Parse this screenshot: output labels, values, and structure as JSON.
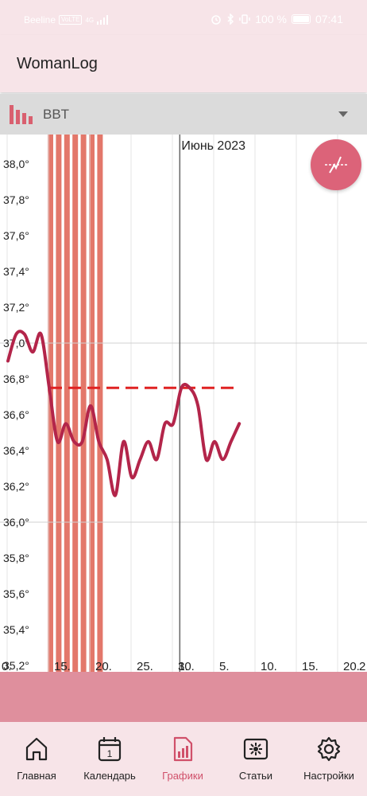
{
  "status_bar": {
    "carrier": "Beeline",
    "volte": "VoLTE",
    "network": "4G",
    "battery": "100 %",
    "time": "07:41"
  },
  "app": {
    "title": "WomanLog"
  },
  "selector": {
    "label": "BBT",
    "icon": "bar-chart-icon"
  },
  "fab": {
    "icon": "temperature-curve-icon"
  },
  "chart_data": {
    "type": "line",
    "month_label": "Июнь 2023",
    "y_ticks": [
      "38,0°",
      "37,8°",
      "37,6°",
      "37,4°",
      "37,2°",
      "37,0°",
      "36,8°",
      "36,6°",
      "36,4°",
      "36,2°",
      "36,0°",
      "35,8°",
      "35,6°",
      "35,4°",
      "35,2°"
    ],
    "y_values": [
      38.0,
      37.8,
      37.6,
      37.4,
      37.2,
      37.0,
      36.8,
      36.6,
      36.4,
      36.2,
      36.0,
      35.8,
      35.6,
      35.4,
      35.2
    ],
    "x_ticks": [
      "0.",
      "15.",
      "20.",
      "25.",
      "30.",
      "1.",
      "5.",
      "10.",
      "15.",
      "20.",
      "2"
    ],
    "x_tick_days": [
      10,
      15,
      20,
      25,
      30,
      31,
      35,
      40,
      45,
      50,
      55
    ],
    "ylim": [
      35.2,
      38.0
    ],
    "xlim": [
      10,
      55
    ],
    "menstruation_days": [
      15,
      16,
      17,
      18,
      19,
      20,
      21
    ],
    "coverline": {
      "value": 36.75,
      "from_day": 15,
      "to_day": 38
    },
    "series": [
      {
        "x": [
          10,
          11,
          12,
          13,
          14,
          15,
          16,
          17,
          18,
          19,
          20,
          21,
          22,
          23,
          24,
          25,
          26,
          27,
          28,
          29,
          30,
          31,
          32,
          33,
          34,
          35,
          36,
          37,
          38
        ],
        "values": [
          36.9,
          37.05,
          37.05,
          36.95,
          37.05,
          36.75,
          36.45,
          36.55,
          36.45,
          36.45,
          36.65,
          36.45,
          36.35,
          36.15,
          36.45,
          36.25,
          36.35,
          36.45,
          36.35,
          36.55,
          36.55,
          36.75,
          36.75,
          36.65,
          36.35,
          36.45,
          36.35,
          36.45,
          36.55
        ]
      }
    ],
    "colors": {
      "line": "#b3254a",
      "menstruation": "#e3776a",
      "coverline": "#e02222"
    }
  },
  "nav": [
    {
      "label": "Главная",
      "icon": "home-icon"
    },
    {
      "label": "Календарь",
      "icon": "calendar-icon",
      "badge": "1"
    },
    {
      "label": "Графики",
      "icon": "charts-icon"
    },
    {
      "label": "Статьи",
      "icon": "articles-icon"
    },
    {
      "label": "Настройки",
      "icon": "settings-icon"
    }
  ],
  "active_tab": "Графики"
}
